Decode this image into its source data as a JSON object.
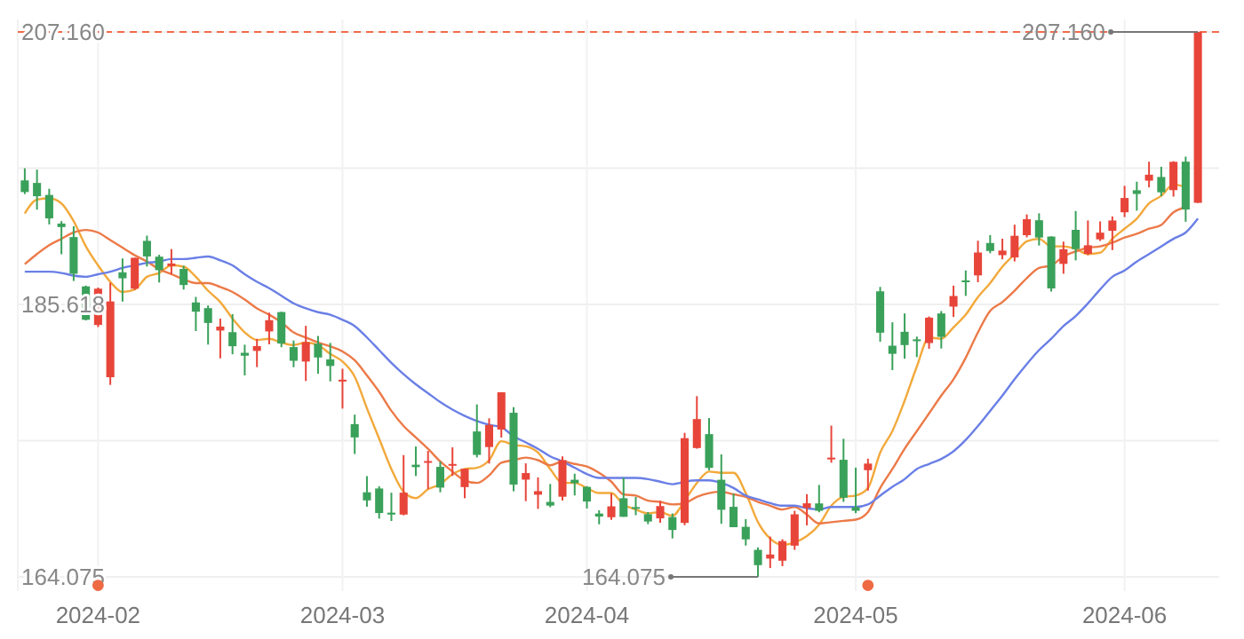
{
  "chart_data": {
    "type": "candlestick",
    "categories": [
      null,
      null,
      null,
      null,
      null,
      null,
      "2024-02",
      null,
      null,
      null,
      null,
      null,
      null,
      null,
      null,
      null,
      null,
      null,
      null,
      null,
      null,
      null,
      null,
      null,
      null,
      null,
      "2024-03",
      null,
      null,
      null,
      null,
      null,
      null,
      null,
      null,
      null,
      null,
      null,
      null,
      null,
      null,
      null,
      null,
      null,
      null,
      null,
      "2024-04",
      null,
      null,
      null,
      null,
      null,
      null,
      null,
      null,
      null,
      null,
      null,
      null,
      null,
      null,
      null,
      null,
      null,
      null,
      null,
      null,
      null,
      "2024-05",
      null,
      null,
      null,
      null,
      null,
      null,
      null,
      null,
      null,
      null,
      null,
      null,
      null,
      null,
      null,
      null,
      null,
      null,
      null,
      null,
      null,
      "2024-06",
      null,
      null,
      null,
      null,
      null,
      null
    ],
    "ohlc": [
      [
        195.42,
        196.38,
        194.34,
        194.5
      ],
      [
        195.22,
        196.27,
        193.11,
        194.17
      ],
      [
        194.27,
        194.76,
        191.94,
        192.42
      ],
      [
        192.01,
        192.2,
        189.58,
        191.73
      ],
      [
        190.94,
        191.8,
        187.47,
        188.04
      ],
      [
        187.04,
        187.1,
        184.35,
        184.4
      ],
      [
        183.99,
        186.95,
        183.82,
        186.86
      ],
      [
        179.86,
        187.33,
        179.25,
        185.85
      ],
      [
        188.15,
        189.25,
        185.84,
        187.68
      ],
      [
        186.86,
        189.31,
        186.77,
        189.3
      ],
      [
        190.64,
        191.05,
        188.61,
        189.41
      ],
      [
        189.39,
        189.54,
        187.35,
        188.32
      ],
      [
        188.65,
        189.99,
        188.0,
        188.85
      ],
      [
        188.42,
        188.67,
        186.79,
        187.15
      ],
      [
        185.77,
        186.21,
        183.51,
        185.04
      ],
      [
        185.32,
        185.53,
        182.44,
        184.15
      ],
      [
        183.55,
        184.49,
        181.35,
        183.86
      ],
      [
        183.42,
        184.85,
        181.67,
        182.31
      ],
      [
        181.79,
        182.43,
        180.0,
        181.56
      ],
      [
        181.94,
        182.89,
        180.66,
        182.32
      ],
      [
        183.48,
        184.96,
        182.46,
        184.37
      ],
      [
        185.01,
        185.04,
        182.23,
        182.52
      ],
      [
        182.24,
        182.76,
        180.65,
        181.16
      ],
      [
        181.1,
        183.92,
        179.56,
        182.63
      ],
      [
        182.51,
        183.12,
        180.13,
        181.42
      ],
      [
        181.27,
        182.57,
        179.53,
        180.75
      ],
      [
        179.55,
        180.53,
        177.38,
        179.66
      ],
      [
        176.15,
        176.9,
        173.79,
        175.1
      ],
      [
        170.76,
        172.04,
        169.62,
        170.12
      ],
      [
        171.06,
        171.24,
        168.68,
        169.12
      ],
      [
        169.15,
        170.73,
        168.49,
        169.0
      ],
      [
        169.0,
        173.7,
        168.94,
        170.73
      ],
      [
        172.94,
        174.38,
        172.05,
        172.75
      ],
      [
        173.15,
        174.03,
        171.01,
        173.23
      ],
      [
        172.77,
        173.19,
        170.76,
        171.13
      ],
      [
        172.91,
        174.31,
        172.05,
        173.0
      ],
      [
        171.17,
        172.62,
        170.29,
        172.62
      ],
      [
        175.57,
        177.71,
        173.52,
        173.72
      ],
      [
        174.34,
        176.61,
        173.03,
        176.08
      ],
      [
        175.72,
        178.67,
        175.09,
        178.67
      ],
      [
        177.05,
        177.49,
        170.84,
        171.37
      ],
      [
        171.76,
        173.05,
        170.06,
        172.28
      ],
      [
        170.57,
        171.94,
        169.45,
        170.85
      ],
      [
        170.0,
        171.42,
        169.58,
        169.71
      ],
      [
        170.41,
        173.6,
        170.11,
        173.31
      ],
      [
        171.75,
        172.23,
        170.51,
        171.48
      ],
      [
        171.19,
        171.25,
        169.48,
        170.03
      ],
      [
        169.08,
        169.34,
        168.23,
        168.84
      ],
      [
        168.79,
        170.68,
        168.58,
        169.65
      ],
      [
        170.29,
        171.92,
        168.82,
        168.82
      ],
      [
        169.59,
        170.39,
        168.95,
        169.58
      ],
      [
        169.03,
        169.2,
        168.24,
        168.45
      ],
      [
        168.7,
        170.08,
        168.35,
        169.67
      ],
      [
        168.8,
        169.09,
        167.11,
        167.78
      ],
      [
        168.34,
        175.46,
        168.16,
        175.04
      ],
      [
        174.26,
        178.36,
        174.21,
        176.55
      ],
      [
        175.36,
        176.63,
        172.5,
        172.69
      ],
      [
        171.75,
        173.76,
        168.27,
        169.38
      ],
      [
        169.61,
        170.65,
        168.0,
        168.0
      ],
      [
        168.03,
        168.64,
        166.55,
        167.04
      ],
      [
        166.21,
        166.4,
        164.075,
        165.0
      ],
      [
        165.52,
        167.26,
        164.77,
        165.84
      ],
      [
        165.35,
        167.05,
        164.92,
        166.9
      ],
      [
        166.54,
        169.3,
        166.21,
        169.02
      ],
      [
        169.53,
        170.61,
        168.15,
        169.89
      ],
      [
        169.88,
        171.34,
        169.18,
        169.3
      ],
      [
        173.37,
        176.03,
        173.1,
        173.5
      ],
      [
        173.33,
        174.99,
        170.0,
        170.33
      ],
      [
        169.58,
        172.71,
        169.11,
        169.3
      ],
      [
        172.51,
        173.42,
        170.89,
        173.03
      ],
      [
        186.65,
        187.0,
        182.66,
        183.38
      ],
      [
        182.35,
        184.2,
        180.42,
        181.71
      ],
      [
        183.45,
        184.9,
        181.32,
        182.4
      ],
      [
        182.85,
        183.07,
        181.45,
        182.74
      ],
      [
        182.56,
        184.66,
        182.11,
        184.57
      ],
      [
        184.9,
        185.09,
        182.13,
        183.05
      ],
      [
        185.44,
        187.1,
        184.62,
        186.28
      ],
      [
        187.51,
        188.3,
        186.29,
        187.43
      ],
      [
        187.91,
        190.65,
        187.37,
        189.72
      ],
      [
        190.47,
        191.1,
        189.66,
        189.84
      ],
      [
        189.51,
        190.81,
        189.18,
        189.87
      ],
      [
        189.33,
        191.92,
        189.01,
        191.04
      ],
      [
        191.09,
        192.73,
        190.92,
        192.35
      ],
      [
        192.27,
        192.82,
        190.27,
        190.9
      ],
      [
        190.98,
        191.0,
        186.63,
        186.88
      ],
      [
        188.82,
        190.58,
        188.04,
        189.98
      ],
      [
        191.51,
        193.0,
        189.1,
        189.99
      ],
      [
        189.61,
        192.25,
        189.51,
        190.29
      ],
      [
        190.76,
        192.18,
        190.63,
        191.29
      ],
      [
        191.44,
        192.57,
        189.91,
        192.25
      ],
      [
        192.9,
        194.99,
        192.52,
        194.03
      ],
      [
        194.64,
        195.32,
        193.03,
        194.35
      ],
      [
        195.4,
        196.9,
        194.87,
        195.87
      ],
      [
        195.69,
        196.5,
        194.17,
        194.48
      ],
      [
        194.65,
        196.94,
        194.14,
        196.89
      ],
      [
        196.9,
        197.3,
        192.15,
        193.12
      ],
      [
        193.65,
        207.16,
        193.63,
        207.15
      ]
    ],
    "colors": [
      "#3aa15a",
      "#3aa15a",
      "#3aa15a",
      "#3aa15a",
      "#3aa15a",
      "#3aa15a",
      "#e8453a",
      "#e8453a",
      "#3aa15a",
      "#e8453a",
      "#3aa15a",
      "#3aa15a",
      "#e8453a",
      "#3aa15a",
      "#3aa15a",
      "#3aa15a",
      "#e8453a",
      "#3aa15a",
      "#3aa15a",
      "#e8453a",
      "#e8453a",
      "#3aa15a",
      "#3aa15a",
      "#e8453a",
      "#3aa15a",
      "#3aa15a",
      "#e8453a",
      "#3aa15a",
      "#3aa15a",
      "#3aa15a",
      "#3aa15a",
      "#e8453a",
      "#3aa15a",
      "#e8453a",
      "#3aa15a",
      "#e8453a",
      "#e8453a",
      "#3aa15a",
      "#e8453a",
      "#e8453a",
      "#3aa15a",
      "#e8453a",
      "#e8453a",
      "#3aa15a",
      "#e8453a",
      "#3aa15a",
      "#3aa15a",
      "#3aa15a",
      "#e8453a",
      "#3aa15a",
      "#3aa15a",
      "#3aa15a",
      "#e8453a",
      "#3aa15a",
      "#e8453a",
      "#e8453a",
      "#3aa15a",
      "#3aa15a",
      "#3aa15a",
      "#3aa15a",
      "#3aa15a",
      "#e8453a",
      "#e8453a",
      "#e8453a",
      "#e8453a",
      "#3aa15a",
      "#e8453a",
      "#3aa15a",
      "#3aa15a",
      "#e8453a",
      "#3aa15a",
      "#3aa15a",
      "#3aa15a",
      "#3aa15a",
      "#e8453a",
      "#3aa15a",
      "#e8453a",
      "#3aa15a",
      "#e8453a",
      "#3aa15a",
      "#e8453a",
      "#e8453a",
      "#e8453a",
      "#3aa15a",
      "#3aa15a",
      "#e8453a",
      "#3aa15a",
      "#e8453a",
      "#e8453a",
      "#e8453a",
      "#e8453a",
      "#3aa15a",
      "#e8453a",
      "#3aa15a",
      "#e8453a",
      "#3aa15a",
      "#e8453a"
    ],
    "series": [
      {
        "type": "line",
        "color": "#f2a93b",
        "values": [
          192.8,
          193.9,
          194.0,
          193.6,
          192.2,
          190.2,
          188.7,
          187.4,
          186.6,
          186.8,
          187.8,
          188.1,
          188.7,
          188.6,
          187.8,
          186.7,
          185.8,
          184.5,
          183.4,
          182.8,
          182.9,
          182.6,
          182.4,
          182.6,
          182.4,
          181.7,
          181.1,
          179.9,
          177.4,
          175.0,
          172.6,
          170.8,
          170.3,
          171.0,
          171.4,
          172.2,
          172.6,
          172.7,
          173.3,
          174.8,
          174.5,
          174.4,
          173.9,
          172.6,
          171.5,
          171.5,
          171.1,
          170.7,
          170.7,
          169.8,
          169.4,
          169.1,
          169.2,
          168.9,
          170.1,
          171.5,
          172.4,
          172.3,
          172.3,
          170.7,
          168.4,
          167.1,
          166.6,
          166.8,
          167.3,
          168.2,
          169.7,
          170.4,
          170.5,
          171.1,
          173.9,
          175.6,
          178.0,
          180.7,
          183.0,
          182.9,
          183.8,
          184.8,
          186.2,
          187.3,
          188.6,
          189.6,
          190.6,
          190.8,
          190.2,
          190.2,
          190.0,
          189.6,
          189.7,
          190.8,
          191.6,
          192.4,
          193.6,
          194.2,
          195.1,
          194.9,
          null
        ]
      },
      {
        "type": "line",
        "color": "#ec7a48",
        "values": [
          188.8,
          189.6,
          190.3,
          190.8,
          191.3,
          191.5,
          191.3,
          190.7,
          190.1,
          189.5,
          189.0,
          188.4,
          188.0,
          187.6,
          187.3,
          187.3,
          187.0,
          186.6,
          186.0,
          185.3,
          184.8,
          184.2,
          183.4,
          183.0,
          182.6,
          182.3,
          181.9,
          181.2,
          180.0,
          178.7,
          177.2,
          176.0,
          175.1,
          174.2,
          173.2,
          172.4,
          171.7,
          171.5,
          172.1,
          173.1,
          173.3,
          173.5,
          173.3,
          172.9,
          173.2,
          173.0,
          172.8,
          172.3,
          171.6,
          170.6,
          170.5,
          170.1,
          170.0,
          169.8,
          169.9,
          170.4,
          170.7,
          170.8,
          170.6,
          170.4,
          170.0,
          169.7,
          169.4,
          169.6,
          169.0,
          168.3,
          168.4,
          168.5,
          168.6,
          169.2,
          171.1,
          172.6,
          174.2,
          175.6,
          177.0,
          178.4,
          179.7,
          181.4,
          183.4,
          185.1,
          185.8,
          186.7,
          187.7,
          188.5,
          188.7,
          189.4,
          189.8,
          190.1,
          190.2,
          190.5,
          190.9,
          191.2,
          191.6,
          191.9,
          192.9,
          193.3,
          null
        ]
      },
      {
        "type": "line",
        "color": "#6a7fe6",
        "values": [
          188.2,
          188.2,
          188.2,
          188.1,
          187.9,
          187.8,
          188.0,
          188.2,
          188.5,
          188.7,
          188.9,
          189.0,
          189.2,
          189.2,
          189.3,
          189.4,
          189.1,
          188.7,
          188.0,
          187.4,
          186.9,
          186.3,
          185.7,
          185.3,
          185.0,
          184.8,
          184.4,
          183.9,
          183.0,
          182.0,
          181.0,
          180.1,
          179.3,
          178.6,
          177.9,
          177.3,
          176.8,
          176.4,
          176.1,
          175.9,
          175.2,
          174.7,
          174.2,
          173.6,
          173.2,
          172.7,
          172.2,
          171.9,
          171.9,
          171.9,
          171.9,
          171.8,
          171.6,
          171.4,
          171.6,
          171.7,
          171.7,
          171.5,
          171.1,
          170.5,
          170.2,
          169.9,
          169.7,
          169.7,
          169.5,
          169.4,
          169.6,
          169.6,
          169.6,
          169.8,
          170.5,
          171.2,
          171.8,
          172.6,
          173.0,
          173.4,
          174.0,
          174.9,
          176.0,
          177.2,
          178.4,
          179.7,
          180.9,
          182.0,
          182.9,
          183.9,
          184.7,
          185.7,
          186.8,
          187.8,
          188.3,
          189.0,
          189.6,
          190.2,
          190.8,
          191.3,
          192.4
        ]
      },
      {
        "type": "scatter",
        "color": "#ee6a42",
        "marker": "circle",
        "values": [
          null,
          null,
          null,
          null,
          null,
          null,
          163.4,
          null,
          null,
          null,
          null,
          null,
          null,
          null,
          null,
          null,
          null,
          null,
          null,
          null,
          null,
          null,
          null,
          null,
          null,
          null,
          null,
          null,
          null,
          null,
          null,
          null,
          null,
          null,
          null,
          null,
          null,
          null,
          null,
          null,
          null,
          null,
          null,
          null,
          null,
          null,
          null,
          null,
          null,
          null,
          null,
          null,
          null,
          null,
          null,
          null,
          null,
          null,
          null,
          null,
          null,
          null,
          null,
          null,
          null,
          null,
          null,
          null,
          null,
          163.4,
          null,
          null,
          null,
          null,
          null,
          null,
          null,
          null,
          null,
          null,
          null,
          null,
          null,
          null,
          null,
          null,
          null,
          null,
          null,
          null,
          null,
          null,
          null,
          null,
          null,
          null,
          null
        ]
      }
    ],
    "ylim": [
      162.95,
      208.14
    ],
    "yticks": [
      {
        "value": 164.075,
        "label": "164.075"
      },
      {
        "value": 174.846,
        "label": null
      },
      {
        "value": 185.618,
        "label": "185.618"
      },
      {
        "value": 196.389,
        "label": null
      },
      {
        "value": 207.16,
        "label": "207.160"
      }
    ],
    "grid": true,
    "ref_lines": [
      {
        "axis": "y",
        "value": 207.16,
        "color": "#f26b4a",
        "line_style": "dashed"
      }
    ],
    "annotations": [
      {
        "text": "207.160",
        "y": 207.16
      },
      "164.075"
    ]
  }
}
